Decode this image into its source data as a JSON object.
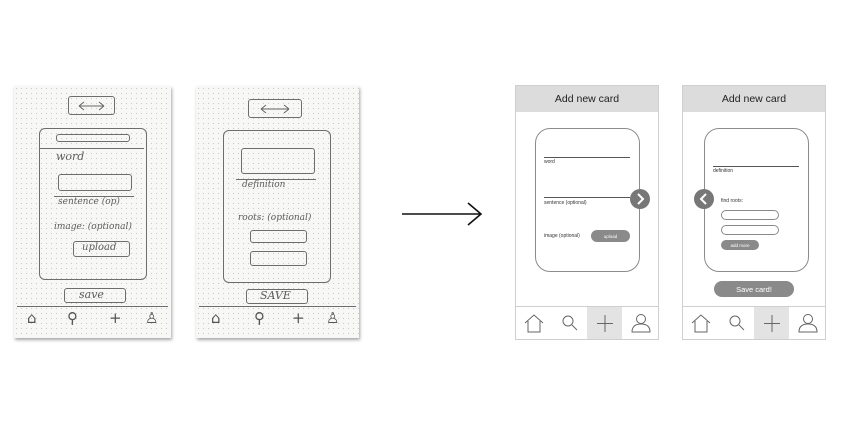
{
  "sketches": [
    {
      "word_label": "word",
      "sentence_label": "sentence (op)",
      "image_label": "image: (optional)",
      "upload_label": "upload",
      "save_label": "save"
    },
    {
      "definition_label": "definition",
      "roots_label": "roots: (optional)",
      "save_label": "SAVE"
    }
  ],
  "wireframes": [
    {
      "title": "Add new card",
      "word_label": "word",
      "sentence_label": "sentence (optional)",
      "image_label": "image (optional)",
      "upload_label": "upload",
      "nav": [
        "home-icon",
        "search-icon",
        "add-icon",
        "profile-icon"
      ],
      "active_nav": "add-icon"
    },
    {
      "title": "Add new card",
      "definition_label": "definition",
      "roots_label": "find roots:",
      "add_more_label": "add more",
      "save_label": "Save card!",
      "nav": [
        "home-icon",
        "search-icon",
        "add-icon",
        "profile-icon"
      ],
      "active_nav": "add-icon"
    }
  ],
  "colors": {
    "header": "#dcdcdc",
    "button": "#8a8a8a",
    "nav_active": "#e3e3e3",
    "pencil": "#6d6d6d"
  }
}
